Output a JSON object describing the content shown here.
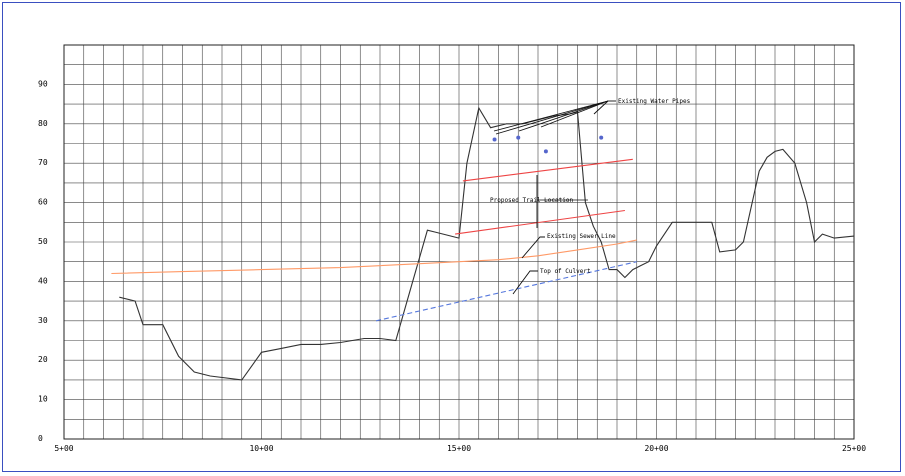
{
  "chart_data": {
    "type": "line",
    "title": "",
    "xlabel": "",
    "ylabel": "",
    "x_tick_labels": [
      "5+00",
      "10+00",
      "15+00",
      "20+00",
      "25+00"
    ],
    "y_tick_labels": [
      "0",
      "10",
      "20",
      "30",
      "40",
      "50",
      "60",
      "70",
      "80",
      "90"
    ],
    "xlim": [
      500,
      2500
    ],
    "ylim": [
      0,
      100
    ],
    "grid": true,
    "legend": "none",
    "series": [
      {
        "key": "ground",
        "color": "#333333",
        "x": [
          640,
          680,
          700,
          750,
          790,
          830,
          870,
          950,
          1000,
          1050,
          1100,
          1150,
          1200,
          1260,
          1300,
          1340,
          1380,
          1420,
          1440,
          1460,
          1480,
          1500,
          1520,
          1550,
          1580,
          1620,
          1660,
          1700,
          1740,
          1780,
          1800,
          1820,
          1840,
          1860,
          1880,
          1900,
          1920,
          1940,
          1960,
          1980,
          2000,
          2040,
          2080,
          2140,
          2160,
          2200,
          2220,
          2260,
          2280,
          2300,
          2320,
          2350,
          2380,
          2400,
          2420,
          2450,
          2500
        ],
        "y": [
          36,
          35,
          29,
          29,
          21,
          17,
          16,
          15,
          22,
          23,
          24,
          24,
          24.5,
          25.5,
          25.5,
          25,
          39,
          53,
          52.5,
          52,
          51.5,
          51,
          70,
          84,
          79,
          80,
          80,
          81,
          82,
          82.5,
          83,
          60,
          54,
          50,
          43,
          43,
          41,
          43,
          44,
          45,
          49,
          55,
          55,
          55,
          47.5,
          48,
          50,
          68,
          71.5,
          73,
          73.5,
          70,
          60,
          50,
          52,
          51,
          51.5
        ]
      },
      {
        "key": "top-of-culvert",
        "color": "#ff9966",
        "x": [
          620,
          800,
          1000,
          1200,
          1400,
          1500,
          1600,
          1700,
          1800,
          1900,
          1950
        ],
        "y": [
          42,
          42.5,
          43,
          43.5,
          44.5,
          45,
          45.5,
          46.5,
          48,
          49.5,
          50.5
        ]
      },
      {
        "key": "existing-sewer",
        "color": "#5577dd",
        "x": [
          1290,
          1950
        ],
        "y": [
          30,
          45
        ]
      },
      {
        "key": "trail-top",
        "color": "#ee4444",
        "x": [
          1510,
          1940
        ],
        "y": [
          65.5,
          71
        ]
      },
      {
        "key": "trail-bottom",
        "color": "#ee4444",
        "x": [
          1490,
          1920
        ],
        "y": [
          52,
          58
        ]
      }
    ],
    "water_pipes": [
      {
        "x": 1590,
        "y": 76
      },
      {
        "x": 1650,
        "y": 76.5
      },
      {
        "x": 1720,
        "y": 73
      },
      {
        "x": 1860,
        "y": 76.5
      }
    ],
    "annotations": {
      "water_pipes": "Existing Water Pipes",
      "trail": "Proposed Trail Location",
      "sewer": "Existing Sewer Line",
      "culvert": "Top of Culvert"
    }
  }
}
